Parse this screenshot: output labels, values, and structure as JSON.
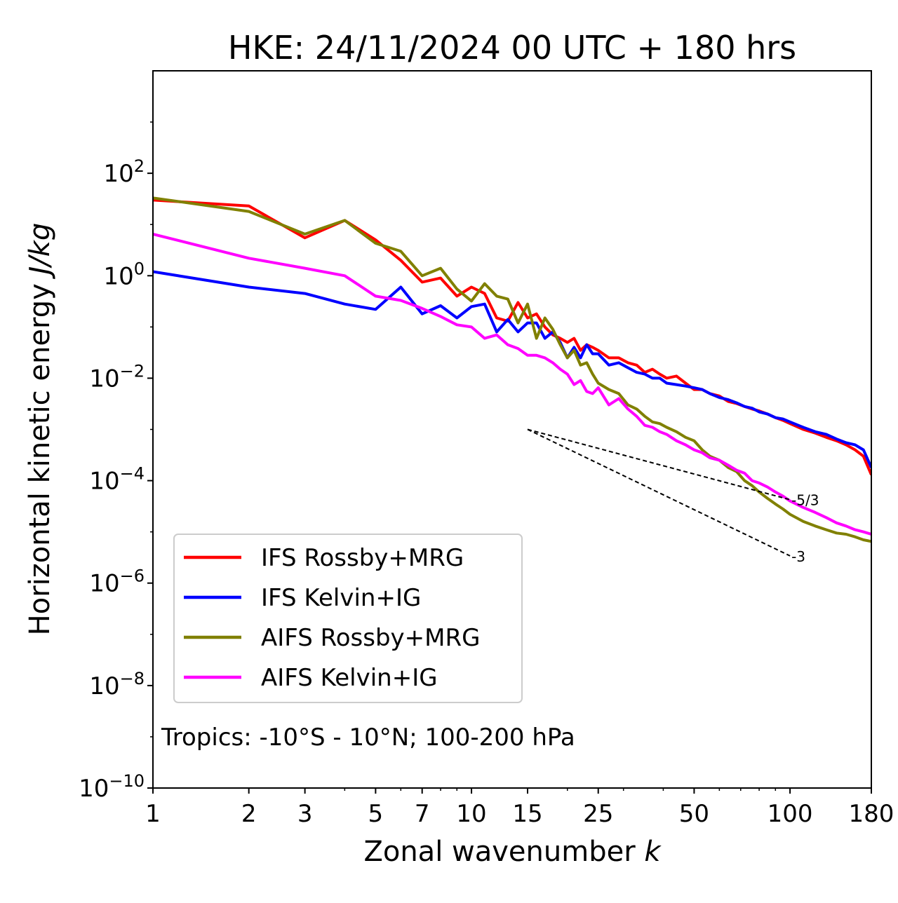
{
  "chart_data": {
    "type": "line",
    "title": "HKE: 24/11/2024 00 UTC + 180 hrs",
    "xlabel_main": "Zonal wavenumber ",
    "xlabel_var": "k",
    "ylabel_main": "Horizontal kinetic energy ",
    "ylabel_var": "J/kg",
    "xscale": "log",
    "yscale": "log",
    "xlim": [
      1,
      180
    ],
    "ylim": [
      1e-10,
      10000
    ],
    "xticks": [
      {
        "v": 1,
        "label": "1"
      },
      {
        "v": 2,
        "label": "2"
      },
      {
        "v": 3,
        "label": "3"
      },
      {
        "v": 5,
        "label": "5"
      },
      {
        "v": 7,
        "label": "7"
      },
      {
        "v": 10,
        "label": "10"
      },
      {
        "v": 15,
        "label": "15"
      },
      {
        "v": 25,
        "label": "25"
      },
      {
        "v": 50,
        "label": "50"
      },
      {
        "v": 100,
        "label": "100"
      },
      {
        "v": 180,
        "label": "180"
      }
    ],
    "yticks": [
      {
        "v": 1e-10,
        "base": "10",
        "exp": "−10"
      },
      {
        "v": 1e-08,
        "base": "10",
        "exp": "−8"
      },
      {
        "v": 1e-06,
        "base": "10",
        "exp": "−6"
      },
      {
        "v": 0.0001,
        "base": "10",
        "exp": "−4"
      },
      {
        "v": 0.01,
        "base": "10",
        "exp": "−2"
      },
      {
        "v": 1,
        "base": "10",
        "exp": "0"
      },
      {
        "v": 100,
        "base": "10",
        "exp": "2"
      }
    ],
    "annotation": "Tropics: -10°S - 10°N; 100-200 hPa",
    "legend_position": "lower-left",
    "grid": false,
    "series": [
      {
        "name": "IFS Rossby+MRG",
        "color": "#ff0000",
        "points": [
          [
            1,
            30
          ],
          [
            2,
            23
          ],
          [
            3,
            5.5
          ],
          [
            4,
            12
          ],
          [
            5,
            5
          ],
          [
            6,
            2
          ],
          [
            7,
            0.75
          ],
          [
            8,
            0.9
          ],
          [
            9,
            0.4
          ],
          [
            10,
            0.6
          ],
          [
            11,
            0.45
          ],
          [
            12,
            0.15
          ],
          [
            13,
            0.13
          ],
          [
            14,
            0.3
          ],
          [
            15,
            0.15
          ],
          [
            16,
            0.18
          ],
          [
            17,
            0.1
          ],
          [
            18,
            0.07
          ],
          [
            19,
            0.06
          ],
          [
            20,
            0.05
          ],
          [
            21,
            0.06
          ],
          [
            22,
            0.035
          ],
          [
            23,
            0.045
          ],
          [
            24,
            0.04
          ],
          [
            25,
            0.035
          ],
          [
            27,
            0.025
          ],
          [
            29,
            0.025
          ],
          [
            31,
            0.02
          ],
          [
            33,
            0.018
          ],
          [
            35,
            0.013
          ],
          [
            37,
            0.015
          ],
          [
            39,
            0.012
          ],
          [
            41,
            0.01
          ],
          [
            44,
            0.011
          ],
          [
            47,
            0.008
          ],
          [
            50,
            0.006
          ],
          [
            53,
            0.006
          ],
          [
            56,
            0.005
          ],
          [
            60,
            0.0045
          ],
          [
            64,
            0.0035
          ],
          [
            68,
            0.0032
          ],
          [
            72,
            0.0028
          ],
          [
            76,
            0.0025
          ],
          [
            80,
            0.0023
          ],
          [
            85,
            0.002
          ],
          [
            90,
            0.0017
          ],
          [
            95,
            0.0015
          ],
          [
            100,
            0.0013
          ],
          [
            110,
            0.001
          ],
          [
            120,
            0.00085
          ],
          [
            130,
            0.0007
          ],
          [
            140,
            0.0006
          ],
          [
            150,
            0.0005
          ],
          [
            160,
            0.0004
          ],
          [
            170,
            0.0003
          ],
          [
            180,
            0.00013
          ]
        ]
      },
      {
        "name": "IFS Kelvin+IG",
        "color": "#0000ff",
        "points": [
          [
            1,
            1.2
          ],
          [
            2,
            0.6
          ],
          [
            3,
            0.45
          ],
          [
            4,
            0.28
          ],
          [
            5,
            0.22
          ],
          [
            6,
            0.6
          ],
          [
            7,
            0.18
          ],
          [
            8,
            0.26
          ],
          [
            9,
            0.15
          ],
          [
            10,
            0.25
          ],
          [
            11,
            0.28
          ],
          [
            12,
            0.08
          ],
          [
            13,
            0.14
          ],
          [
            14,
            0.08
          ],
          [
            15,
            0.12
          ],
          [
            16,
            0.12
          ],
          [
            17,
            0.06
          ],
          [
            18,
            0.08
          ],
          [
            19,
            0.05
          ],
          [
            20,
            0.025
          ],
          [
            21,
            0.04
          ],
          [
            22,
            0.025
          ],
          [
            23,
            0.045
          ],
          [
            24,
            0.03
          ],
          [
            25,
            0.03
          ],
          [
            27,
            0.018
          ],
          [
            29,
            0.02
          ],
          [
            31,
            0.016
          ],
          [
            33,
            0.013
          ],
          [
            35,
            0.012
          ],
          [
            37,
            0.01
          ],
          [
            39,
            0.01
          ],
          [
            41,
            0.008
          ],
          [
            44,
            0.0075
          ],
          [
            47,
            0.007
          ],
          [
            50,
            0.0065
          ],
          [
            53,
            0.006
          ],
          [
            56,
            0.005
          ],
          [
            60,
            0.0042
          ],
          [
            64,
            0.0038
          ],
          [
            68,
            0.0033
          ],
          [
            72,
            0.0028
          ],
          [
            76,
            0.0026
          ],
          [
            80,
            0.0022
          ],
          [
            85,
            0.002
          ],
          [
            90,
            0.0017
          ],
          [
            95,
            0.0016
          ],
          [
            100,
            0.0014
          ],
          [
            110,
            0.0011
          ],
          [
            120,
            0.0009
          ],
          [
            130,
            0.0008
          ],
          [
            140,
            0.00065
          ],
          [
            150,
            0.00055
          ],
          [
            160,
            0.0005
          ],
          [
            170,
            0.0004
          ],
          [
            180,
            0.00018
          ]
        ]
      },
      {
        "name": "AIFS Rossby+MRG",
        "color": "#808000",
        "points": [
          [
            1,
            33
          ],
          [
            2,
            18
          ],
          [
            3,
            6.5
          ],
          [
            4,
            12
          ],
          [
            5,
            4.3
          ],
          [
            6,
            3
          ],
          [
            7,
            1
          ],
          [
            8,
            1.4
          ],
          [
            9,
            0.55
          ],
          [
            10,
            0.32
          ],
          [
            11,
            0.7
          ],
          [
            12,
            0.4
          ],
          [
            13,
            0.35
          ],
          [
            14,
            0.12
          ],
          [
            15,
            0.28
          ],
          [
            16,
            0.06
          ],
          [
            17,
            0.15
          ],
          [
            18,
            0.09
          ],
          [
            19,
            0.045
          ],
          [
            20,
            0.025
          ],
          [
            21,
            0.035
          ],
          [
            22,
            0.018
          ],
          [
            23,
            0.02
          ],
          [
            24,
            0.012
          ],
          [
            25,
            0.008
          ],
          [
            27,
            0.006
          ],
          [
            29,
            0.005
          ],
          [
            31,
            0.003
          ],
          [
            33,
            0.0025
          ],
          [
            35,
            0.0018
          ],
          [
            37,
            0.0014
          ],
          [
            39,
            0.0013
          ],
          [
            41,
            0.0011
          ],
          [
            44,
            0.0009
          ],
          [
            47,
            0.0007
          ],
          [
            50,
            0.0006
          ],
          [
            53,
            0.0004
          ],
          [
            56,
            0.0003
          ],
          [
            60,
            0.00025
          ],
          [
            64,
            0.00018
          ],
          [
            68,
            0.00015
          ],
          [
            72,
            0.0001
          ],
          [
            76,
            8e-05
          ],
          [
            80,
            6e-05
          ],
          [
            85,
            4.5e-05
          ],
          [
            90,
            3.5e-05
          ],
          [
            95,
            2.8e-05
          ],
          [
            100,
            2.2e-05
          ],
          [
            110,
            1.6e-05
          ],
          [
            120,
            1.3e-05
          ],
          [
            130,
            1.1e-05
          ],
          [
            140,
            9.5e-06
          ],
          [
            150,
            9e-06
          ],
          [
            160,
            8e-06
          ],
          [
            170,
            7e-06
          ],
          [
            180,
            6.5e-06
          ]
        ]
      },
      {
        "name": "AIFS Kelvin+IG",
        "color": "#ff00ff",
        "points": [
          [
            1,
            6.5
          ],
          [
            2,
            2.2
          ],
          [
            3,
            1.4
          ],
          [
            4,
            1
          ],
          [
            5,
            0.4
          ],
          [
            6,
            0.33
          ],
          [
            7,
            0.23
          ],
          [
            8,
            0.16
          ],
          [
            9,
            0.11
          ],
          [
            10,
            0.1
          ],
          [
            11,
            0.06
          ],
          [
            12,
            0.07
          ],
          [
            13,
            0.045
          ],
          [
            14,
            0.038
          ],
          [
            15,
            0.028
          ],
          [
            16,
            0.028
          ],
          [
            17,
            0.025
          ],
          [
            18,
            0.02
          ],
          [
            19,
            0.015
          ],
          [
            20,
            0.012
          ],
          [
            21,
            0.0075
          ],
          [
            22,
            0.009
          ],
          [
            23,
            0.0055
          ],
          [
            24,
            0.005
          ],
          [
            25,
            0.0065
          ],
          [
            27,
            0.003
          ],
          [
            29,
            0.004
          ],
          [
            31,
            0.0025
          ],
          [
            33,
            0.0018
          ],
          [
            35,
            0.0012
          ],
          [
            37,
            0.0011
          ],
          [
            39,
            0.0009
          ],
          [
            41,
            0.0008
          ],
          [
            44,
            0.0006
          ],
          [
            47,
            0.0005
          ],
          [
            50,
            0.0004
          ],
          [
            53,
            0.00035
          ],
          [
            56,
            0.00028
          ],
          [
            60,
            0.00025
          ],
          [
            64,
            0.0002
          ],
          [
            68,
            0.00016
          ],
          [
            72,
            0.00014
          ],
          [
            76,
            0.0001
          ],
          [
            80,
            9e-05
          ],
          [
            85,
            7.5e-05
          ],
          [
            90,
            6e-05
          ],
          [
            95,
            5e-05
          ],
          [
            100,
            4e-05
          ],
          [
            110,
            3e-05
          ],
          [
            120,
            2.4e-05
          ],
          [
            130,
            1.9e-05
          ],
          [
            140,
            1.5e-05
          ],
          [
            150,
            1.3e-05
          ],
          [
            160,
            1.1e-05
          ],
          [
            170,
            1e-05
          ],
          [
            180,
            9e-06
          ]
        ]
      }
    ],
    "reference_lines": [
      {
        "label": "-5/3",
        "from": [
          15,
          0.001
        ],
        "to": [
          100,
          4.25e-05
        ]
      },
      {
        "label": "-3",
        "from": [
          15,
          0.001
        ],
        "to": [
          100,
          3.4e-06
        ]
      }
    ]
  }
}
